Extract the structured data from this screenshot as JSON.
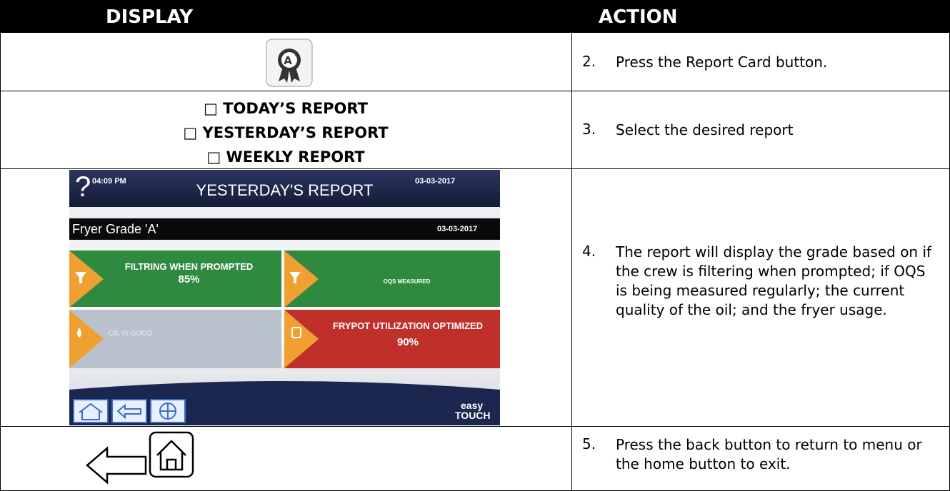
{
  "header": [
    "DISPLAY",
    "ACTION"
  ],
  "rows": [
    {
      "step": "2.",
      "action": "Press the Report Card button."
    },
    {
      "display": [
        "□ TODAY’S REPORT",
        "□ YESTERDAY’S REPORT",
        "□ WEEKLY REPORT"
      ],
      "step": "3.",
      "action": "Select the desired report"
    },
    {
      "screen": {
        "help": "?",
        "time": "04:09 PM",
        "title": "YESTERDAY'S REPORT",
        "date": "03-03-2017",
        "grade": "Fryer Grade 'A'",
        "grade_date": "03-03-2017",
        "tiles": [
          {
            "label": "FILTRING WHEN PROMPTED",
            "value": "85%"
          },
          {
            "label": "OQS MEASURED"
          },
          {
            "label": "OIL IS GOOD"
          },
          {
            "label": "FRYPOT UTILIZATION OPTIMIZED",
            "value": "90%"
          }
        ],
        "brand": [
          "easy",
          "TOUCH"
        ]
      },
      "step": "4.",
      "action": "The report will display the grade based on if the crew is filtering when prompted; if OQS is being measured regularly; the current quality of the oil; and the fryer usage."
    },
    {
      "step": "5.",
      "action": "Press the back button to return to menu or the home button to exit."
    }
  ]
}
